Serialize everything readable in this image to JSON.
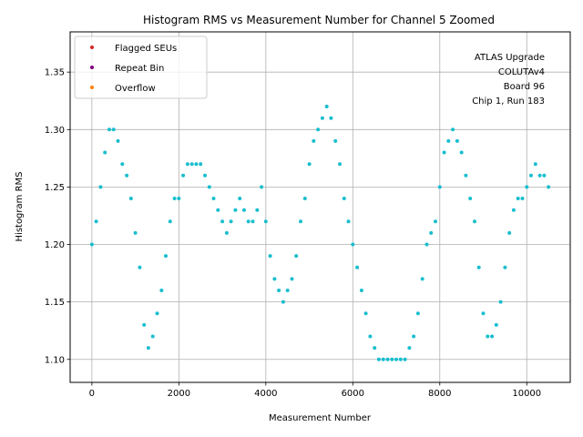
{
  "chart_data": {
    "type": "scatter",
    "title": "Histogram RMS vs Measurement Number for Channel 5 Zoomed",
    "xlabel": "Measurement Number",
    "ylabel": "Histogram RMS",
    "xlim": [
      -500,
      11000
    ],
    "ylim": [
      1.08,
      1.385
    ],
    "x_ticks": [
      0,
      2000,
      4000,
      6000,
      8000,
      10000
    ],
    "y_ticks": [
      1.1,
      1.15,
      1.2,
      1.25,
      1.3,
      1.35
    ],
    "x_tick_labels": [
      "0",
      "2000",
      "4000",
      "6000",
      "8000",
      "10000"
    ],
    "y_tick_labels": [
      "1.10",
      "1.15",
      "1.20",
      "1.25",
      "1.30",
      "1.35"
    ],
    "grid": true,
    "legend_position": "top-left",
    "annotation_lines": [
      "ATLAS Upgrade",
      "COLUTAv4",
      "Board 96",
      "Chip 1, Run 183"
    ],
    "series": [
      {
        "name": "Flagged SEUs",
        "color": "#d62728",
        "values": []
      },
      {
        "name": "Repeat Bin",
        "color": "#800080",
        "values": []
      },
      {
        "name": "Overflow",
        "color": "#ff7f0e",
        "values": []
      },
      {
        "name": "",
        "color": "#17becf",
        "points": [
          [
            0,
            1.2
          ],
          [
            100,
            1.22
          ],
          [
            200,
            1.25
          ],
          [
            300,
            1.28
          ],
          [
            400,
            1.3
          ],
          [
            500,
            1.3
          ],
          [
            600,
            1.29
          ],
          [
            700,
            1.27
          ],
          [
            800,
            1.26
          ],
          [
            900,
            1.24
          ],
          [
            1000,
            1.21
          ],
          [
            1100,
            1.18
          ],
          [
            1200,
            1.13
          ],
          [
            1300,
            1.11
          ],
          [
            1400,
            1.12
          ],
          [
            1500,
            1.14
          ],
          [
            1600,
            1.16
          ],
          [
            1700,
            1.19
          ],
          [
            1800,
            1.22
          ],
          [
            1900,
            1.24
          ],
          [
            2000,
            1.24
          ],
          [
            2100,
            1.26
          ],
          [
            2200,
            1.27
          ],
          [
            2300,
            1.27
          ],
          [
            2400,
            1.27
          ],
          [
            2500,
            1.27
          ],
          [
            2600,
            1.26
          ],
          [
            2700,
            1.25
          ],
          [
            2800,
            1.24
          ],
          [
            2900,
            1.23
          ],
          [
            3000,
            1.22
          ],
          [
            3100,
            1.21
          ],
          [
            3200,
            1.22
          ],
          [
            3300,
            1.23
          ],
          [
            3400,
            1.24
          ],
          [
            3500,
            1.23
          ],
          [
            3600,
            1.22
          ],
          [
            3700,
            1.22
          ],
          [
            3800,
            1.23
          ],
          [
            3900,
            1.25
          ],
          [
            4000,
            1.22
          ],
          [
            4100,
            1.19
          ],
          [
            4200,
            1.17
          ],
          [
            4300,
            1.16
          ],
          [
            4400,
            1.15
          ],
          [
            4500,
            1.16
          ],
          [
            4600,
            1.17
          ],
          [
            4700,
            1.19
          ],
          [
            4800,
            1.22
          ],
          [
            4900,
            1.24
          ],
          [
            5000,
            1.27
          ],
          [
            5100,
            1.29
          ],
          [
            5200,
            1.3
          ],
          [
            5300,
            1.31
          ],
          [
            5400,
            1.32
          ],
          [
            5500,
            1.31
          ],
          [
            5600,
            1.29
          ],
          [
            5700,
            1.27
          ],
          [
            5800,
            1.24
          ],
          [
            5900,
            1.22
          ],
          [
            6000,
            1.2
          ],
          [
            6100,
            1.18
          ],
          [
            6200,
            1.16
          ],
          [
            6300,
            1.14
          ],
          [
            6400,
            1.12
          ],
          [
            6500,
            1.11
          ],
          [
            6600,
            1.1
          ],
          [
            6700,
            1.1
          ],
          [
            6800,
            1.1
          ],
          [
            6900,
            1.1
          ],
          [
            7000,
            1.1
          ],
          [
            7100,
            1.1
          ],
          [
            7200,
            1.1
          ],
          [
            7300,
            1.11
          ],
          [
            7400,
            1.12
          ],
          [
            7500,
            1.14
          ],
          [
            7600,
            1.17
          ],
          [
            7700,
            1.2
          ],
          [
            7800,
            1.21
          ],
          [
            7900,
            1.22
          ],
          [
            8000,
            1.25
          ],
          [
            8100,
            1.28
          ],
          [
            8200,
            1.29
          ],
          [
            8300,
            1.3
          ],
          [
            8400,
            1.29
          ],
          [
            8500,
            1.28
          ],
          [
            8600,
            1.26
          ],
          [
            8700,
            1.24
          ],
          [
            8800,
            1.22
          ],
          [
            8900,
            1.18
          ],
          [
            9000,
            1.14
          ],
          [
            9100,
            1.12
          ],
          [
            9200,
            1.12
          ],
          [
            9300,
            1.13
          ],
          [
            9400,
            1.15
          ],
          [
            9500,
            1.18
          ],
          [
            9600,
            1.21
          ],
          [
            9700,
            1.23
          ],
          [
            9800,
            1.24
          ],
          [
            9900,
            1.24
          ],
          [
            10000,
            1.25
          ],
          [
            10100,
            1.26
          ],
          [
            10200,
            1.27
          ],
          [
            10300,
            1.26
          ],
          [
            10400,
            1.26
          ],
          [
            10500,
            1.25
          ]
        ]
      }
    ]
  }
}
